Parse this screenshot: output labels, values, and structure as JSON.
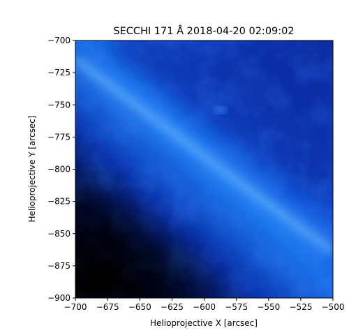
{
  "title": "SECCHI 171 Å 2018-04-20 02:09:02",
  "xlabel": "Helioprojective X [arcsec]",
  "ylabel": "Helioprojective Y [arcsec]",
  "x_ticks": [
    "−700",
    "−675",
    "−650",
    "−625",
    "−600",
    "−575",
    "−550",
    "−525",
    "−500"
  ],
  "y_ticks": [
    "−700",
    "−725",
    "−750",
    "−775",
    "−800",
    "−825",
    "−850",
    "−875",
    "−900"
  ],
  "x_range": [
    -700,
    -500
  ],
  "y_range": [
    -900,
    -700
  ],
  "colormap": {
    "dark": "#000000",
    "mid": "#0a3fc4",
    "bright": "#3f9bff",
    "highlight": "#6cc0ff"
  }
}
